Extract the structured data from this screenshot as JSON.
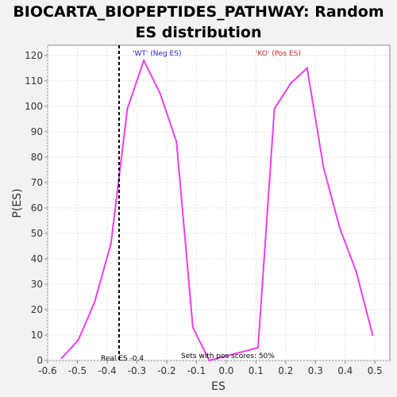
{
  "chart_data": {
    "type": "line",
    "title": "BIOCARTA_BIOPEPTIDES_PATHWAY: Random ES distribution",
    "title_lines": [
      "BIOCARTA_BIOPEPTIDES_PATHWAY: Random",
      "ES distribution"
    ],
    "xlabel": "ES",
    "ylabel": "P(ES)",
    "xlim": [
      -0.6,
      0.55
    ],
    "ylim": [
      0,
      124
    ],
    "x_ticks": [
      "-0.6",
      "-0.5",
      "-0.4",
      "-0.3",
      "-0.2",
      "-0.1",
      "0.0",
      "0.1",
      "0.2",
      "0.3",
      "0.4",
      "0.5"
    ],
    "y_ticks": [
      "0",
      "10",
      "20",
      "30",
      "40",
      "50",
      "60",
      "70",
      "80",
      "90",
      "100",
      "110",
      "120"
    ],
    "grid": true,
    "series": [
      {
        "color": "#ee3df0",
        "x": [
          -0.552,
          -0.497,
          -0.442,
          -0.387,
          -0.332,
          -0.277,
          -0.222,
          -0.167,
          -0.112,
          -0.057,
          0.107,
          0.162,
          0.217,
          0.272,
          0.327,
          0.382,
          0.437,
          0.492
        ],
        "y": [
          1,
          8,
          23,
          46,
          99,
          118,
          105,
          86,
          13,
          0,
          5,
          99,
          109,
          115,
          76,
          52,
          35,
          10
        ]
      }
    ],
    "real_es_line": {
      "x": -0.36,
      "label": "Real ES -0.4",
      "color": "#000000"
    },
    "annotations": {
      "neg": {
        "text": "'WT' (Neg ES)",
        "color": "#1f1fd6"
      },
      "pos": {
        "text": "'KO' (Pos ES)",
        "color": "#d61f1f"
      },
      "pos_scores": {
        "text": "Sets with pos scores: 50%",
        "color": "#000000"
      }
    }
  }
}
